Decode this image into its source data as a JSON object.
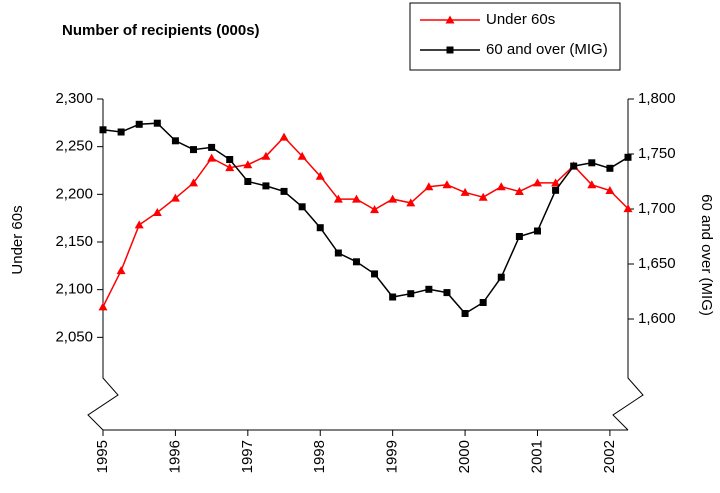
{
  "chart_data": {
    "type": "line",
    "title": "Number of recipients (000s)",
    "ylabel": "Under 60s",
    "y2label": "60 and over (MIG)",
    "x": [
      1995,
      1995.25,
      1995.5,
      1995.75,
      1996,
      1996.25,
      1996.5,
      1996.75,
      1997,
      1997.25,
      1997.5,
      1997.75,
      1998,
      1998.25,
      1998.5,
      1998.75,
      1999,
      1999.25,
      1999.5,
      1999.75,
      2000,
      2000.25,
      2000.5,
      2000.75,
      2001,
      2001.25,
      2001.5,
      2001.75,
      2002,
      2002.25
    ],
    "xlim": [
      1995,
      2002.25
    ],
    "xticks": [
      1995,
      1996,
      1997,
      1998,
      1999,
      2000,
      2001,
      2002
    ],
    "ylim": [
      2000,
      2300
    ],
    "yticks": [
      {
        "value": 2050,
        "label": "2,050"
      },
      {
        "value": 2100,
        "label": "2,100"
      },
      {
        "value": 2150,
        "label": "2,150"
      },
      {
        "value": 2200,
        "label": "2,200"
      },
      {
        "value": 2250,
        "label": "2,250"
      },
      {
        "value": 2300,
        "label": "2,300"
      }
    ],
    "y2lim": [
      1550,
      1800
    ],
    "y2ticks": [
      {
        "value": 1600,
        "label": "1,600"
      },
      {
        "value": 1650,
        "label": "1,650"
      },
      {
        "value": 1700,
        "label": "1,700"
      },
      {
        "value": 1750,
        "label": "1,750"
      },
      {
        "value": 1800,
        "label": "1,800"
      }
    ],
    "series": [
      {
        "name": "Under 60s",
        "color": "#ff0000",
        "marker": "triangle",
        "values": [
          2082,
          2120,
          2168,
          2181,
          2196,
          2212,
          2238,
          2228,
          2231,
          2240,
          2260,
          2240,
          2219,
          2195,
          2195,
          2184,
          2195,
          2191,
          2208,
          2210,
          2202,
          2197,
          2208,
          2203,
          2212,
          2212,
          2230,
          2210,
          2204,
          2185
        ]
      },
      {
        "name": "60 and over (MIG)",
        "color": "#000000",
        "marker": "square",
        "axis": "y2",
        "values": [
          1772,
          1770,
          1777,
          1778,
          1762,
          1754,
          1756,
          1745,
          1725,
          1721,
          1716,
          1702,
          1683,
          1660,
          1652,
          1641,
          1620,
          1623,
          1627,
          1624,
          1605,
          1615,
          1638,
          1675,
          1680,
          1717,
          1739,
          1742,
          1737,
          1747
        ]
      }
    ]
  }
}
